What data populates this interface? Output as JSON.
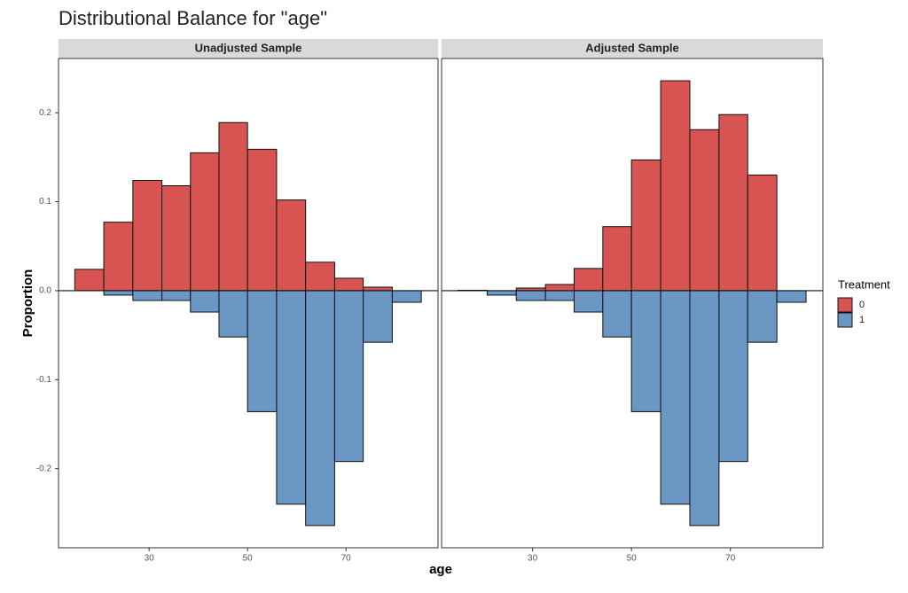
{
  "chart_data": {
    "type": "histogram",
    "title": "Distributional Balance for \"age\"",
    "x_label": "age",
    "y_label": "Proportion",
    "legend_title": "Treatment",
    "bins": [
      14.9,
      20.8,
      26.7,
      32.6,
      38.4,
      44.2,
      50.0,
      55.9,
      61.8,
      67.7,
      73.5,
      79.4,
      85.3
    ],
    "xlim": [
      11.6,
      88.7
    ],
    "xticks": [
      30,
      50,
      70
    ],
    "ylim": [
      -0.289,
      0.261
    ],
    "yticks": [
      -0.2,
      -0.1,
      {
        "value": 0,
        "label": "0.0"
      },
      0.1,
      0.2
    ],
    "panels": [
      {
        "title": "Unadjusted Sample",
        "series": [
          {
            "name": "0",
            "color": "#d75452",
            "values": [
              0.024,
              0.077,
              0.124,
              0.118,
              0.155,
              0.189,
              0.159,
              0.102,
              0.032,
              0.014,
              0.004,
              0
            ]
          },
          {
            "name": "1",
            "color": "#6a97c4",
            "values": [
              0,
              -0.005,
              -0.011,
              -0.011,
              -0.024,
              -0.052,
              -0.136,
              -0.24,
              -0.264,
              -0.192,
              -0.058,
              -0.013
            ]
          }
        ]
      },
      {
        "title": "Adjusted Sample",
        "series": [
          {
            "name": "0",
            "color": "#d75452",
            "values": [
              0.0005,
              0,
              0.003,
              0.007,
              0.025,
              0.072,
              0.147,
              0.236,
              0.181,
              0.198,
              0.13,
              0
            ]
          },
          {
            "name": "1",
            "color": "#6a97c4",
            "values": [
              0,
              -0.005,
              -0.011,
              -0.011,
              -0.024,
              -0.052,
              -0.136,
              -0.24,
              -0.264,
              -0.192,
              -0.058,
              -0.013
            ]
          }
        ]
      }
    ]
  }
}
